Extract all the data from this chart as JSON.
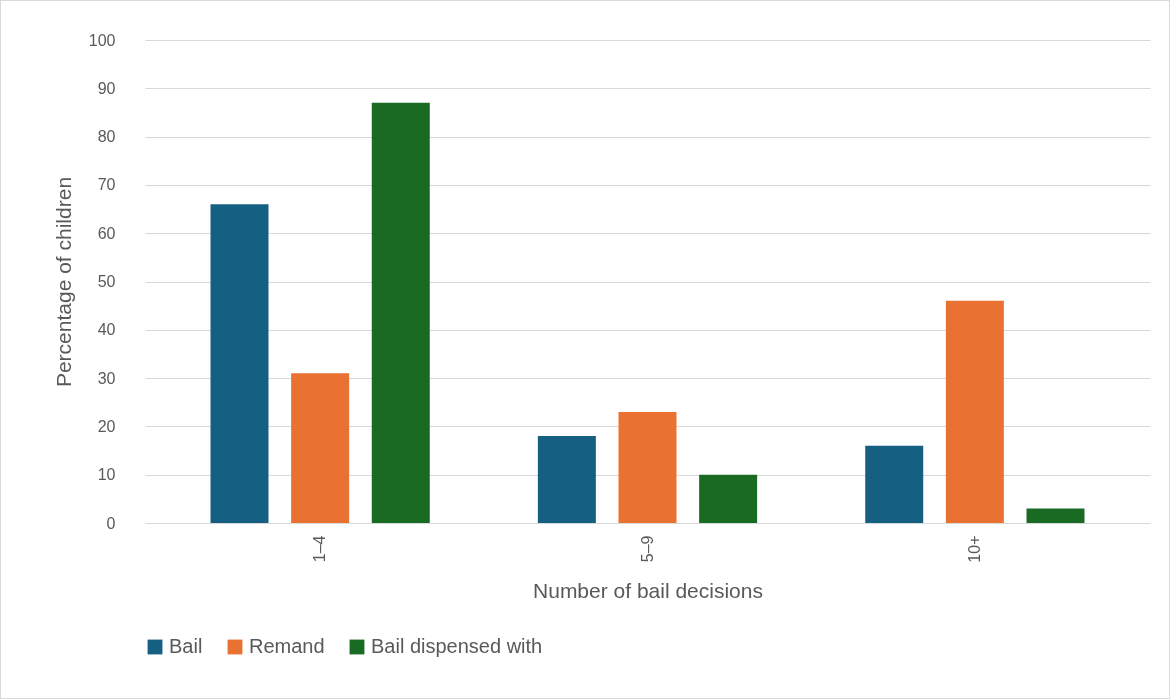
{
  "chart_data": {
    "type": "bar",
    "xlabel": "Number of bail decisions",
    "ylabel": "Percentage of children",
    "categories": [
      "1–4",
      "5–9",
      "10+"
    ],
    "series": [
      {
        "name": "Bail",
        "color": "#156082",
        "values": [
          66,
          18,
          16
        ]
      },
      {
        "name": "Remand",
        "color": "#e97132",
        "values": [
          31,
          23,
          46
        ]
      },
      {
        "name": "Bail dispensed with",
        "color": "#196b24",
        "values": [
          87,
          10,
          3
        ]
      }
    ],
    "ylim": [
      0,
      100
    ],
    "yticks": [
      0,
      10,
      20,
      30,
      40,
      50,
      60,
      70,
      80,
      90,
      100
    ],
    "grid": "y",
    "legend": "bottom"
  }
}
